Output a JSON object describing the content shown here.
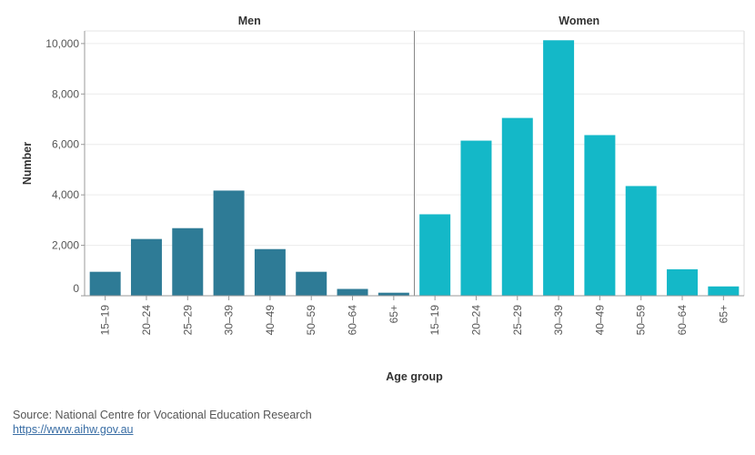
{
  "chart_data": {
    "type": "bar",
    "categories": [
      "15–19",
      "20–24",
      "25–29",
      "30–39",
      "40–49",
      "50–59",
      "60–64",
      "65+"
    ],
    "panels": [
      {
        "name": "Men",
        "color": "#2e7b96",
        "values": [
          950,
          2250,
          2680,
          4170,
          1850,
          950,
          270,
          120
        ]
      },
      {
        "name": "Women",
        "color": "#14b8c8",
        "values": [
          3230,
          6150,
          7050,
          10130,
          6370,
          4350,
          1050,
          370
        ]
      }
    ],
    "xlabel": "Age group",
    "ylabel": "Number",
    "ylim": [
      0,
      10500
    ],
    "yticks": [
      0,
      2000,
      4000,
      6000,
      8000,
      10000
    ],
    "ytick_labels": [
      "0",
      "2,000",
      "4,000",
      "6,000",
      "8,000",
      "10,000"
    ],
    "grid": true
  },
  "footer": {
    "source": "Source: National Centre for Vocational Education Research",
    "link": "https://www.aihw.gov.au"
  }
}
